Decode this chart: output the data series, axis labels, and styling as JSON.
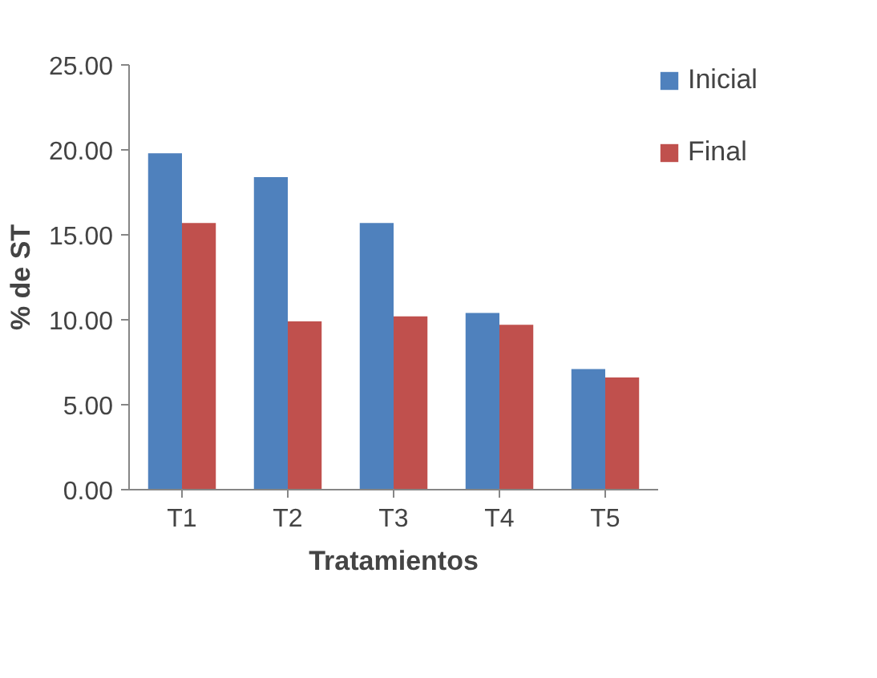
{
  "chart_data": {
    "type": "bar",
    "xlabel": "Tratamientos",
    "ylabel": "% de ST",
    "categories": [
      "T1",
      "T2",
      "T3",
      "T4",
      "T5"
    ],
    "series": [
      {
        "name": "Inicial",
        "color": "#4f81bd",
        "values": [
          19.8,
          18.4,
          15.7,
          10.4,
          7.1
        ]
      },
      {
        "name": "Final",
        "color": "#c0504d",
        "values": [
          15.7,
          9.9,
          10.2,
          9.7,
          6.6
        ]
      }
    ],
    "ylim": [
      0,
      25
    ],
    "yticks": [
      {
        "value": 0,
        "label": "0.00"
      },
      {
        "value": 5,
        "label": "5.00"
      },
      {
        "value": 10,
        "label": "10.00"
      },
      {
        "value": 15,
        "label": "15.00"
      },
      {
        "value": 20,
        "label": "20.00"
      },
      {
        "value": 25,
        "label": "25.00"
      }
    ],
    "grid": false,
    "legend": "right"
  }
}
